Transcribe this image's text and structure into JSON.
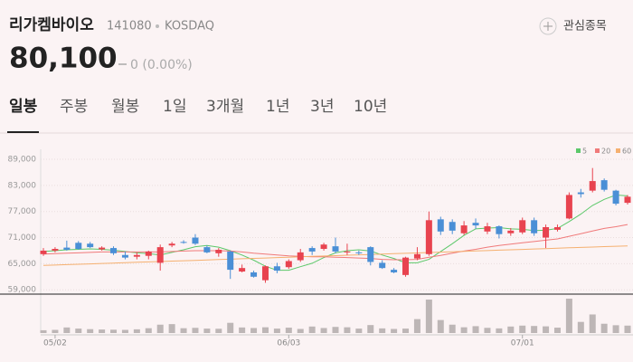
{
  "header": {
    "name": "리가켐바이오",
    "code": "141080",
    "market": "KOSDAQ",
    "price": "80,100",
    "change": "0 (0.00%)",
    "watch": "관심종목"
  },
  "tabs": [
    "일봉",
    "주봉",
    "월봉",
    "1일",
    "3개월",
    "1년",
    "3년",
    "10년"
  ],
  "chart_data": {
    "type": "candlestick",
    "categories": [
      null,
      "05/02",
      null,
      null,
      null,
      null,
      null,
      null,
      null,
      null,
      null,
      null,
      null,
      null,
      null,
      null,
      null,
      null,
      null,
      null,
      null,
      "06/03",
      null,
      null,
      null,
      null,
      null,
      null,
      null,
      null,
      null,
      null,
      null,
      null,
      null,
      null,
      null,
      null,
      null,
      null,
      null,
      "07/01",
      null,
      null,
      null,
      null,
      null,
      null,
      null,
      null,
      null
    ],
    "open": [
      67200,
      68000,
      68700,
      69800,
      69600,
      68300,
      68600,
      67000,
      66600,
      66800,
      65200,
      69200,
      70000,
      71000,
      68800,
      67400,
      67800,
      63200,
      63000,
      61200,
      64400,
      64200,
      65800,
      68600,
      68400,
      69000,
      67600,
      67600,
      68800,
      65200,
      63600,
      62400,
      66200,
      67200,
      75200,
      74600,
      72000,
      74400,
      72400,
      73600,
      72000,
      72200,
      75000,
      71000,
      72800,
      75400,
      81400,
      81800,
      84200,
      81800,
      79000
    ],
    "high": [
      68600,
      68800,
      70300,
      70200,
      70000,
      69000,
      69000,
      67800,
      67600,
      68000,
      69400,
      70000,
      70400,
      71800,
      69200,
      68600,
      68000,
      64800,
      63400,
      64600,
      65200,
      66000,
      68400,
      69000,
      69800,
      71000,
      69600,
      68000,
      69000,
      65800,
      64000,
      66600,
      68800,
      77000,
      75800,
      75200,
      74800,
      75400,
      74400,
      73800,
      73200,
      75600,
      75600,
      74000,
      74000,
      81400,
      82200,
      87000,
      84600,
      82000,
      80800
    ],
    "low": [
      66800,
      67600,
      68000,
      68200,
      68600,
      68000,
      67000,
      66000,
      66000,
      66000,
      63400,
      68800,
      69600,
      69300,
      67400,
      66600,
      61500,
      63000,
      61800,
      60600,
      62800,
      63800,
      65400,
      67000,
      68000,
      67400,
      67000,
      67000,
      64600,
      63800,
      62800,
      62000,
      65800,
      66800,
      71600,
      71800,
      71600,
      73000,
      71800,
      70800,
      71400,
      71800,
      71400,
      68600,
      72400,
      75200,
      80200,
      81400,
      81600,
      78400,
      78600
    ],
    "close": [
      68000,
      68400,
      68200,
      68400,
      68800,
      68700,
      67400,
      66400,
      67000,
      67800,
      68800,
      69600,
      69800,
      69600,
      67600,
      68200,
      63600,
      64000,
      62000,
      64400,
      63400,
      65600,
      67600,
      67800,
      69400,
      67800,
      67800,
      67400,
      65400,
      64000,
      63000,
      66400,
      67200,
      75000,
      72400,
      72600,
      73800,
      73800,
      73600,
      71800,
      72600,
      75000,
      72000,
      73400,
      73400,
      80800,
      81000,
      84000,
      82000,
      78800,
      80400
    ],
    "volume": [
      30000,
      34000,
      60000,
      48000,
      42000,
      38000,
      36000,
      34000,
      40000,
      52000,
      90000,
      96000,
      52000,
      56000,
      48000,
      46000,
      110000,
      60000,
      54000,
      62000,
      48000,
      58000,
      44000,
      70000,
      54000,
      66000,
      62000,
      48000,
      86000,
      50000,
      44000,
      48000,
      150000,
      360000,
      140000,
      90000,
      62000,
      74000,
      56000,
      50000,
      70000,
      80000,
      76000,
      72000,
      58000,
      370000,
      120000,
      200000,
      100000,
      84000,
      80000
    ],
    "up_color": "#e8434f",
    "down_color": "#4a8fd6",
    "moving_averages": [
      {
        "name": "5",
        "color": "#5cc86a",
        "values": [
          67800,
          68000,
          68200,
          68300,
          68400,
          68300,
          68100,
          67800,
          67500,
          67300,
          67000,
          67600,
          68200,
          68900,
          69200,
          68800,
          68000,
          67000,
          65800,
          64400,
          63500,
          63500,
          64300,
          65100,
          66400,
          67500,
          68000,
          68200,
          67900,
          67000,
          66200,
          65200,
          65200,
          66000,
          67800,
          69600,
          71500,
          73000,
          73200,
          73300,
          73000,
          72900,
          72600,
          72700,
          73100,
          74700,
          76400,
          78400,
          79800,
          80800,
          80600
        ]
      },
      {
        "name": "20",
        "color": "#f07a7a",
        "values": [
          67200,
          67300,
          67400,
          67500,
          67600,
          67700,
          67700,
          67700,
          67700,
          67700,
          67700,
          67800,
          67900,
          68000,
          68000,
          68000,
          67900,
          67700,
          67400,
          67200,
          67000,
          66800,
          66700,
          66600,
          66600,
          66500,
          66400,
          66300,
          66200,
          66000,
          65900,
          65900,
          66000,
          66500,
          66900,
          67400,
          67900,
          68300,
          68800,
          69200,
          69500,
          69800,
          70100,
          70400,
          70700,
          71300,
          71900,
          72500,
          73100,
          73500,
          74000
        ]
      },
      {
        "name": "60",
        "color": "#f5b070",
        "values": [
          64600,
          64690,
          64780,
          64870,
          64960,
          65050,
          65140,
          65230,
          65320,
          65410,
          65500,
          65590,
          65680,
          65770,
          65860,
          65950,
          66040,
          66130,
          66220,
          66310,
          66400,
          66490,
          66580,
          66670,
          66760,
          66850,
          66940,
          67030,
          67120,
          67210,
          67300,
          67390,
          67480,
          67570,
          67660,
          67750,
          67840,
          67930,
          68020,
          68110,
          68200,
          68290,
          68380,
          68470,
          68560,
          68650,
          68740,
          68830,
          68920,
          69010,
          69100
        ]
      }
    ],
    "ylim": [
      58000,
      91300
    ],
    "yticks": [
      {
        "value": 59000,
        "label": "59,000"
      },
      {
        "value": 65000,
        "label": "65,000"
      },
      {
        "value": 71000,
        "label": "71,000"
      },
      {
        "value": 77000,
        "label": "77,000"
      },
      {
        "value": 83000,
        "label": "83,000"
      },
      {
        "value": 89000,
        "label": "89,000"
      }
    ],
    "grid": true
  }
}
